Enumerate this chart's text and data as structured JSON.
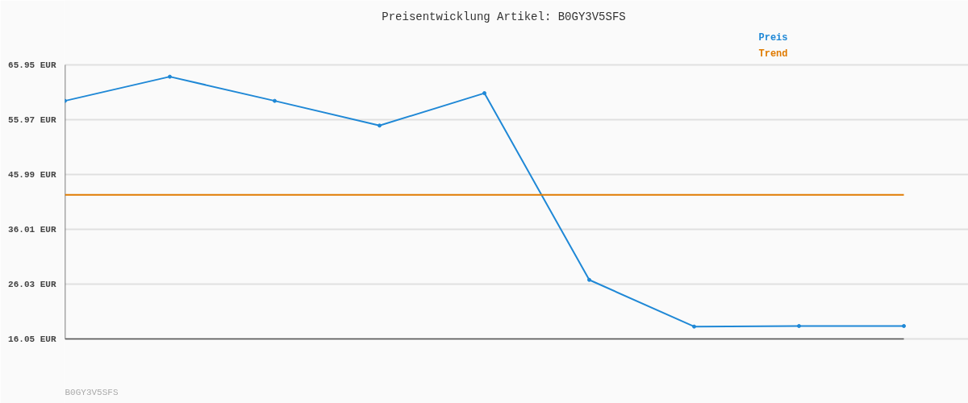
{
  "chart_data": {
    "type": "line",
    "title": "Preisentwicklung Artikel: B0GY3V5SFS",
    "categories": [
      null,
      null,
      null,
      null,
      null,
      null,
      null,
      null,
      null
    ],
    "series": [
      {
        "name": "Preis",
        "color": "#1f88d6",
        "marker": "circle",
        "values": [
          59.4,
          63.8,
          59.4,
          54.9,
          60.8,
          26.8,
          18.3,
          18.4,
          18.4
        ]
      },
      {
        "name": "Trend",
        "color": "#e07b00",
        "marker": "none",
        "values": [
          42.3,
          42.3,
          42.3,
          42.3,
          42.3,
          42.3,
          42.3,
          42.3,
          42.3
        ]
      }
    ],
    "ylim": [
      16.05,
      65.95
    ],
    "yticks": [
      {
        "value": 16.05,
        "label": "16.05 EUR"
      },
      {
        "value": 26.03,
        "label": "26.03 EUR"
      },
      {
        "value": 36.01,
        "label": "36.01 EUR"
      },
      {
        "value": 45.99,
        "label": "45.99 EUR"
      },
      {
        "value": 55.97,
        "label": "55.97 EUR"
      },
      {
        "value": 65.95,
        "label": "65.95 EUR"
      }
    ],
    "grid": "y",
    "tick_labels": "y",
    "annotations": [
      "B0GY3V5SFS"
    ]
  }
}
